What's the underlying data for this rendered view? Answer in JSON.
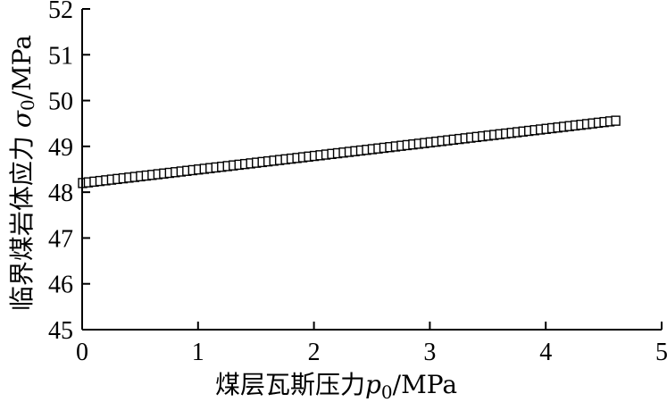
{
  "chart_data": {
    "type": "scatter",
    "title": "",
    "xlabel": {
      "text": "煤层瓦斯压力",
      "symbol": "p",
      "subscript": "0",
      "unit": "/MPa"
    },
    "ylabel": {
      "text": "临界煤岩体应力 ",
      "symbol": "σ",
      "subscript": "0",
      "unit": "/MPa"
    },
    "xlim": [
      0,
      5
    ],
    "ylim": [
      45,
      52
    ],
    "xticks": [
      0,
      1,
      2,
      3,
      4,
      5
    ],
    "yticks": [
      45,
      46,
      47,
      48,
      49,
      50,
      51,
      52
    ],
    "grid": false,
    "legend": "none",
    "marker": "open-square",
    "series": [
      {
        "x_start": 0,
        "x_end": 4.6,
        "x_step": 0.05,
        "y_at_start": 48.2,
        "y_at_end": 49.56
      }
    ]
  }
}
